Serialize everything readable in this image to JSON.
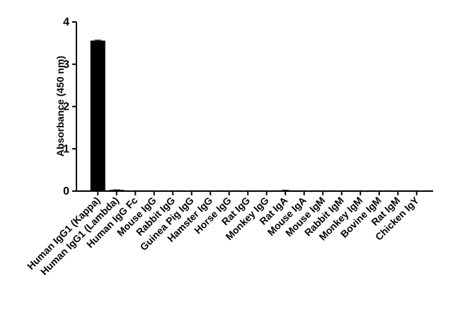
{
  "chart_data": {
    "type": "bar",
    "y_label": "Absorbance (450 nm)",
    "categories": [
      "Human IgG1 (Kappa)",
      "Human IgG1 (Lambda)",
      "Human IgG Fc",
      "Mouse IgG",
      "Rabbit IgG",
      "Guinea Pig IgG",
      "Hamster IgG",
      "Horse IgG",
      "Rat IgG",
      "Monkey IgG",
      "Rat IgA",
      "Mouse IgA",
      "Mouse IgM",
      "Rabbit IgM",
      "Monkey IgM",
      "Bovine IgM",
      "Rat IgM",
      "Chicken IgY"
    ],
    "values": [
      3.55,
      0.02,
      0,
      0,
      0,
      0,
      0,
      0,
      0,
      0,
      0.01,
      0,
      0,
      0,
      0,
      0,
      0,
      0
    ],
    "errors": [
      0.02,
      0.01,
      0,
      0,
      0,
      0,
      0,
      0,
      0,
      0,
      0.01,
      0,
      0,
      0,
      0,
      0,
      0,
      0
    ],
    "color": "#000000",
    "ylim": [
      0,
      4
    ],
    "yticks": [
      0,
      1,
      2,
      3,
      4
    ],
    "grid": false
  }
}
